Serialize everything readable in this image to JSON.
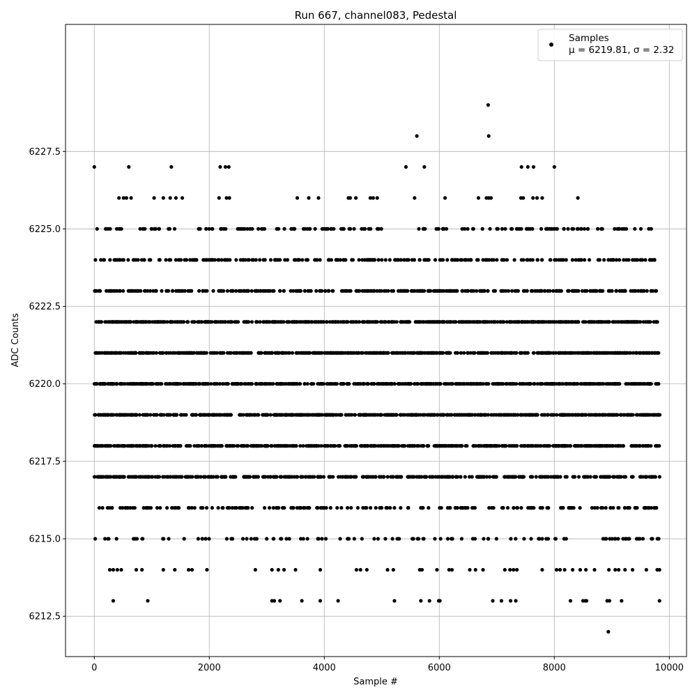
{
  "chart_data": {
    "type": "scatter",
    "title": "Run 667, channel083, Pedestal",
    "xlabel": "Sample #",
    "ylabel": "ADC Counts",
    "xlim": [
      -500,
      10300
    ],
    "ylim": [
      6211.2,
      6231.6
    ],
    "xticks": [
      0,
      2000,
      4000,
      6000,
      8000,
      10000
    ],
    "xtick_labels": [
      "0",
      "2000",
      "4000",
      "6000",
      "8000",
      "10000"
    ],
    "yticks": [
      6212.5,
      6215.0,
      6217.5,
      6220.0,
      6222.5,
      6225.0,
      6227.5
    ],
    "ytick_labels": [
      "6212.5",
      "6215.0",
      "6217.5",
      "6220.0",
      "6222.5",
      "6225.0",
      "6227.5"
    ],
    "grid": true,
    "legend_position": "top-right",
    "series": [
      {
        "name": "Samples",
        "stats_label": "μ = 6219.81, σ = 2.32",
        "color": "#000000",
        "x_range": [
          0,
          9840
        ],
        "n_samples": 9841,
        "dense_levels": [
          6218,
          6219,
          6220,
          6221,
          6222
        ],
        "medium_levels": [
          6217,
          6223,
          6224
        ],
        "sparse_levels": [
          6215,
          6216,
          6225
        ],
        "outliers": [
          {
            "x": 0,
            "y": 6227
          },
          {
            "x": 600,
            "y": 6227
          },
          {
            "x": 1340,
            "y": 6227
          },
          {
            "x": 2190,
            "y": 6227
          },
          {
            "x": 2280,
            "y": 6227
          },
          {
            "x": 2340,
            "y": 6227
          },
          {
            "x": 5420,
            "y": 6227
          },
          {
            "x": 5740,
            "y": 6227
          },
          {
            "x": 7430,
            "y": 6227
          },
          {
            "x": 7540,
            "y": 6227
          },
          {
            "x": 7640,
            "y": 6227
          },
          {
            "x": 8000,
            "y": 6227
          },
          {
            "x": 5610,
            "y": 6228
          },
          {
            "x": 6860,
            "y": 6228
          },
          {
            "x": 6850,
            "y": 6229
          },
          {
            "x": 430,
            "y": 6226
          },
          {
            "x": 510,
            "y": 6226
          },
          {
            "x": 560,
            "y": 6226
          },
          {
            "x": 640,
            "y": 6226
          },
          {
            "x": 1040,
            "y": 6226
          },
          {
            "x": 1200,
            "y": 6226
          },
          {
            "x": 1320,
            "y": 6226
          },
          {
            "x": 1420,
            "y": 6226
          },
          {
            "x": 1530,
            "y": 6226
          },
          {
            "x": 2170,
            "y": 6226
          },
          {
            "x": 2300,
            "y": 6226
          },
          {
            "x": 2350,
            "y": 6226
          },
          {
            "x": 3530,
            "y": 6226
          },
          {
            "x": 3730,
            "y": 6226
          },
          {
            "x": 3900,
            "y": 6226
          },
          {
            "x": 4420,
            "y": 6226
          },
          {
            "x": 4450,
            "y": 6226
          },
          {
            "x": 4550,
            "y": 6226
          },
          {
            "x": 4800,
            "y": 6226
          },
          {
            "x": 4850,
            "y": 6226
          },
          {
            "x": 4920,
            "y": 6226
          },
          {
            "x": 5570,
            "y": 6226
          },
          {
            "x": 6100,
            "y": 6226
          },
          {
            "x": 6680,
            "y": 6226
          },
          {
            "x": 6820,
            "y": 6226
          },
          {
            "x": 6860,
            "y": 6226
          },
          {
            "x": 6900,
            "y": 6226
          },
          {
            "x": 7420,
            "y": 6226
          },
          {
            "x": 7460,
            "y": 6226
          },
          {
            "x": 7630,
            "y": 6226
          },
          {
            "x": 7700,
            "y": 6226
          },
          {
            "x": 7790,
            "y": 6226
          },
          {
            "x": 8410,
            "y": 6226
          },
          {
            "x": 270,
            "y": 6214
          },
          {
            "x": 330,
            "y": 6214
          },
          {
            "x": 400,
            "y": 6214
          },
          {
            "x": 470,
            "y": 6214
          },
          {
            "x": 730,
            "y": 6214
          },
          {
            "x": 830,
            "y": 6214
          },
          {
            "x": 1200,
            "y": 6214
          },
          {
            "x": 1400,
            "y": 6214
          },
          {
            "x": 1640,
            "y": 6214
          },
          {
            "x": 1700,
            "y": 6214
          },
          {
            "x": 1960,
            "y": 6214
          },
          {
            "x": 2800,
            "y": 6214
          },
          {
            "x": 3090,
            "y": 6214
          },
          {
            "x": 3200,
            "y": 6214
          },
          {
            "x": 3300,
            "y": 6214
          },
          {
            "x": 3500,
            "y": 6214
          },
          {
            "x": 3930,
            "y": 6214
          },
          {
            "x": 4560,
            "y": 6214
          },
          {
            "x": 4630,
            "y": 6214
          },
          {
            "x": 4740,
            "y": 6214
          },
          {
            "x": 5100,
            "y": 6214
          },
          {
            "x": 5200,
            "y": 6214
          },
          {
            "x": 5660,
            "y": 6214
          },
          {
            "x": 5700,
            "y": 6214
          },
          {
            "x": 5960,
            "y": 6214
          },
          {
            "x": 6170,
            "y": 6214
          },
          {
            "x": 6220,
            "y": 6214
          },
          {
            "x": 6530,
            "y": 6214
          },
          {
            "x": 6630,
            "y": 6214
          },
          {
            "x": 6760,
            "y": 6214
          },
          {
            "x": 7140,
            "y": 6214
          },
          {
            "x": 7230,
            "y": 6214
          },
          {
            "x": 7290,
            "y": 6214
          },
          {
            "x": 7350,
            "y": 6214
          },
          {
            "x": 7790,
            "y": 6214
          },
          {
            "x": 8040,
            "y": 6214
          },
          {
            "x": 8100,
            "y": 6214
          },
          {
            "x": 8180,
            "y": 6214
          },
          {
            "x": 8320,
            "y": 6214
          },
          {
            "x": 8450,
            "y": 6214
          },
          {
            "x": 8550,
            "y": 6214
          },
          {
            "x": 8700,
            "y": 6214
          },
          {
            "x": 8950,
            "y": 6214
          },
          {
            "x": 9060,
            "y": 6214
          },
          {
            "x": 9120,
            "y": 6214
          },
          {
            "x": 9230,
            "y": 6214
          },
          {
            "x": 9360,
            "y": 6214
          },
          {
            "x": 9600,
            "y": 6214
          },
          {
            "x": 9790,
            "y": 6214
          },
          {
            "x": 9830,
            "y": 6214
          },
          {
            "x": 330,
            "y": 6213
          },
          {
            "x": 930,
            "y": 6213
          },
          {
            "x": 3090,
            "y": 6213
          },
          {
            "x": 3130,
            "y": 6213
          },
          {
            "x": 3230,
            "y": 6213
          },
          {
            "x": 3610,
            "y": 6213
          },
          {
            "x": 3930,
            "y": 6213
          },
          {
            "x": 4240,
            "y": 6213
          },
          {
            "x": 5220,
            "y": 6213
          },
          {
            "x": 5680,
            "y": 6213
          },
          {
            "x": 5830,
            "y": 6213
          },
          {
            "x": 5990,
            "y": 6213
          },
          {
            "x": 6010,
            "y": 6213
          },
          {
            "x": 6930,
            "y": 6213
          },
          {
            "x": 7080,
            "y": 6213
          },
          {
            "x": 7240,
            "y": 6213
          },
          {
            "x": 7330,
            "y": 6213
          },
          {
            "x": 8280,
            "y": 6213
          },
          {
            "x": 8500,
            "y": 6213
          },
          {
            "x": 8540,
            "y": 6213
          },
          {
            "x": 8560,
            "y": 6213
          },
          {
            "x": 8920,
            "y": 6213
          },
          {
            "x": 8960,
            "y": 6213
          },
          {
            "x": 9170,
            "y": 6213
          },
          {
            "x": 9830,
            "y": 6213
          },
          {
            "x": 8940,
            "y": 6212
          }
        ]
      }
    ]
  }
}
